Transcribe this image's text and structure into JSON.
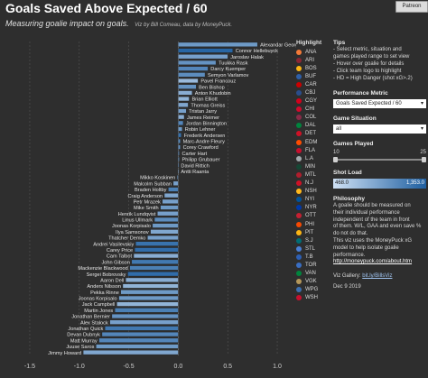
{
  "header": {
    "title": "Goals Saved Above Expected / 60",
    "subtitle": "Measuring goalie impact on goals.",
    "byline": "Viz by Bill Comeau, data by MoneyPuck.",
    "patreon_label": "Patreon"
  },
  "chart_data": {
    "type": "bar",
    "orientation": "horizontal",
    "xlim": [
      -1.6,
      1.1
    ],
    "xticks": [
      -1.5,
      -1.0,
      -0.5,
      0.0,
      0.5,
      1.0
    ],
    "xtick_labels": [
      "-1.5",
      "-1.0",
      "-0.5",
      "0.0",
      "0.5",
      "1.0"
    ],
    "grid": true,
    "colors": {
      "light": "#cfe1f5",
      "dark": "#1f5fa0",
      "label": "#e6e6e6",
      "grid": "#555555"
    },
    "goalies": [
      {
        "name": "Alexandar Georgiev",
        "value": 0.8,
        "load": 0.55
      },
      {
        "name": "Connor Hellebuyck",
        "value": 0.55,
        "load": 0.95
      },
      {
        "name": "Jaroslav Halak",
        "value": 0.5,
        "load": 0.5
      },
      {
        "name": "Tuukka Rask",
        "value": 0.38,
        "load": 0.6
      },
      {
        "name": "Darcy Kuemper",
        "value": 0.3,
        "load": 0.7
      },
      {
        "name": "Semyon Varlamov",
        "value": 0.27,
        "load": 0.65
      },
      {
        "name": "Pavel Francouz",
        "value": 0.2,
        "load": 0.3
      },
      {
        "name": "Ben Bishop",
        "value": 0.18,
        "load": 0.6
      },
      {
        "name": "Anton Khudobin",
        "value": 0.14,
        "load": 0.4
      },
      {
        "name": "Brian Elliott",
        "value": 0.11,
        "load": 0.35
      },
      {
        "name": "Thomas Greiss",
        "value": 0.1,
        "load": 0.45
      },
      {
        "name": "Tristan Jarry",
        "value": 0.08,
        "load": 0.5
      },
      {
        "name": "James Reimer",
        "value": 0.06,
        "load": 0.4
      },
      {
        "name": "Jordan Binnington",
        "value": 0.05,
        "load": 0.7
      },
      {
        "name": "Robin Lehner",
        "value": 0.04,
        "load": 0.55
      },
      {
        "name": "Frederik Andersen",
        "value": 0.03,
        "load": 0.85
      },
      {
        "name": "Marc-Andre Fleury",
        "value": 0.02,
        "load": 0.65
      },
      {
        "name": "Corey Crawford",
        "value": 0.02,
        "load": 0.6
      },
      {
        "name": "Carter Hart",
        "value": 0.01,
        "load": 0.6
      },
      {
        "name": "Philipp Grubauer",
        "value": 0.01,
        "load": 0.55
      },
      {
        "name": "David Rittich",
        "value": 0.0,
        "load": 0.6
      },
      {
        "name": "Antti Raanta",
        "value": 0.0,
        "load": 0.35
      },
      {
        "name": "Mikko Koskinen",
        "value": -0.01,
        "load": 0.5
      },
      {
        "name": "Malcolm Subban",
        "value": -0.05,
        "load": 0.5
      },
      {
        "name": "Braden Holtby",
        "value": -0.1,
        "load": 0.75
      },
      {
        "name": "Craig Anderson",
        "value": -0.14,
        "load": 0.45
      },
      {
        "name": "Petr Mrazek",
        "value": -0.16,
        "load": 0.5
      },
      {
        "name": "Mike Smith",
        "value": -0.18,
        "load": 0.55
      },
      {
        "name": "Henrik Lundqvist",
        "value": -0.21,
        "load": 0.5
      },
      {
        "name": "Linus Ullmark",
        "value": -0.24,
        "load": 0.65
      },
      {
        "name": "Joonas Korpisalo",
        "value": -0.26,
        "load": 0.55
      },
      {
        "name": "Ilya Samsonov",
        "value": -0.28,
        "load": 0.45
      },
      {
        "name": "Thatcher Demko",
        "value": -0.31,
        "load": 0.5
      },
      {
        "name": "Andrei Vasilevskiy",
        "value": -0.43,
        "load": 0.85
      },
      {
        "name": "Carey Price",
        "value": -0.44,
        "load": 0.9
      },
      {
        "name": "Cam Talbot",
        "value": -0.45,
        "load": 0.4
      },
      {
        "name": "John Gibson",
        "value": -0.47,
        "load": 0.8
      },
      {
        "name": "Mackenzie Blackwood",
        "value": -0.49,
        "load": 0.75
      },
      {
        "name": "Sergei Bobrovsky",
        "value": -0.51,
        "load": 0.9
      },
      {
        "name": "Aaron Dell",
        "value": -0.53,
        "load": 0.4
      },
      {
        "name": "Anders Nilsson",
        "value": -0.56,
        "load": 0.35
      },
      {
        "name": "Pekka Rinne",
        "value": -0.58,
        "load": 0.55
      },
      {
        "name": "Joonas Korpisalo",
        "value": -0.6,
        "load": 0.55
      },
      {
        "name": "Jack Campbell",
        "value": -0.62,
        "load": 0.35
      },
      {
        "name": "Martin Jones",
        "value": -0.64,
        "load": 0.75
      },
      {
        "name": "Jonathan Bernier",
        "value": -0.67,
        "load": 0.6
      },
      {
        "name": "Alex Stalock",
        "value": -0.69,
        "load": 0.5
      },
      {
        "name": "Jonathan Quick",
        "value": -0.74,
        "load": 0.8
      },
      {
        "name": "Devan Dubnyk",
        "value": -0.77,
        "load": 0.7
      },
      {
        "name": "Matt Murray",
        "value": -0.8,
        "load": 0.7
      },
      {
        "name": "Juuse Saros",
        "value": -0.83,
        "load": 0.55
      },
      {
        "name": "Jimmy Howard",
        "value": -0.96,
        "load": 0.45
      }
    ]
  },
  "highlight": {
    "title": "Highlight",
    "teams": [
      {
        "abbr": "ANA",
        "color": "#f47a38"
      },
      {
        "abbr": "ARI",
        "color": "#8c2633"
      },
      {
        "abbr": "BOS",
        "color": "#fcb514"
      },
      {
        "abbr": "BUF",
        "color": "#2e5fa8"
      },
      {
        "abbr": "CAR",
        "color": "#cc0000"
      },
      {
        "abbr": "CBJ",
        "color": "#2a4d8c"
      },
      {
        "abbr": "CGY",
        "color": "#d2001c"
      },
      {
        "abbr": "CHI",
        "color": "#cf0a2c"
      },
      {
        "abbr": "COL",
        "color": "#8a2b48"
      },
      {
        "abbr": "DAL",
        "color": "#00843d"
      },
      {
        "abbr": "DET",
        "color": "#ce1126"
      },
      {
        "abbr": "EDM",
        "color": "#ff4c00"
      },
      {
        "abbr": "FLA",
        "color": "#c8102e"
      },
      {
        "abbr": "L.A",
        "color": "#a2aaad"
      },
      {
        "abbr": "MIN",
        "color": "#154734"
      },
      {
        "abbr": "MTL",
        "color": "#af1e2d"
      },
      {
        "abbr": "N.J",
        "color": "#ce1126"
      },
      {
        "abbr": "NSH",
        "color": "#ffb81c"
      },
      {
        "abbr": "NYI",
        "color": "#00539b"
      },
      {
        "abbr": "NYR",
        "color": "#0038a8"
      },
      {
        "abbr": "OTT",
        "color": "#c52032"
      },
      {
        "abbr": "PHI",
        "color": "#f74902"
      },
      {
        "abbr": "PIT",
        "color": "#fcb514"
      },
      {
        "abbr": "S.J",
        "color": "#006d75"
      },
      {
        "abbr": "STL",
        "color": "#4a7fd4"
      },
      {
        "abbr": "T.B",
        "color": "#2d5fb4"
      },
      {
        "abbr": "TOR",
        "color": "#3a6ec2"
      },
      {
        "abbr": "VAN",
        "color": "#00843d"
      },
      {
        "abbr": "VGK",
        "color": "#b4975a"
      },
      {
        "abbr": "WPG",
        "color": "#3c6fb0"
      },
      {
        "abbr": "WSH",
        "color": "#c8102e"
      }
    ]
  },
  "tips": {
    "heading": "Tips",
    "lines": [
      "- Select metric, situation and",
      "games played range to set view",
      "- Hover over goalie for details",
      "- Click team logo to highlight",
      "- HD = High Danger (shot xG>.2)"
    ]
  },
  "performance_metric": {
    "heading": "Performance Metric",
    "value": "Goals Saved Expected / 60"
  },
  "game_situation": {
    "heading": "Game Situation",
    "value": "all"
  },
  "games_played": {
    "heading": "Games Played",
    "min": "10",
    "max": "25",
    "min_fraction": 0.0,
    "max_fraction": 1.0
  },
  "shot_load": {
    "heading": "Shot Load",
    "min": "468.0",
    "max": "1,353.0"
  },
  "philosophy": {
    "heading": "Philosophy",
    "lines": [
      "A goalie should be measured on",
      "their individual performance",
      "independent of the team in front",
      "of them. W/L, GAA and even save %",
      "do not do that.",
      "This viz uses the MoneyPuck xG",
      "model to help isolate goalie",
      "performance."
    ],
    "link": "http://moneypuck.com/about.htm"
  },
  "gallery": {
    "label": "Viz Gallery:",
    "link": "bit.ly/BillsViz"
  },
  "date": "Dec 9 2019"
}
